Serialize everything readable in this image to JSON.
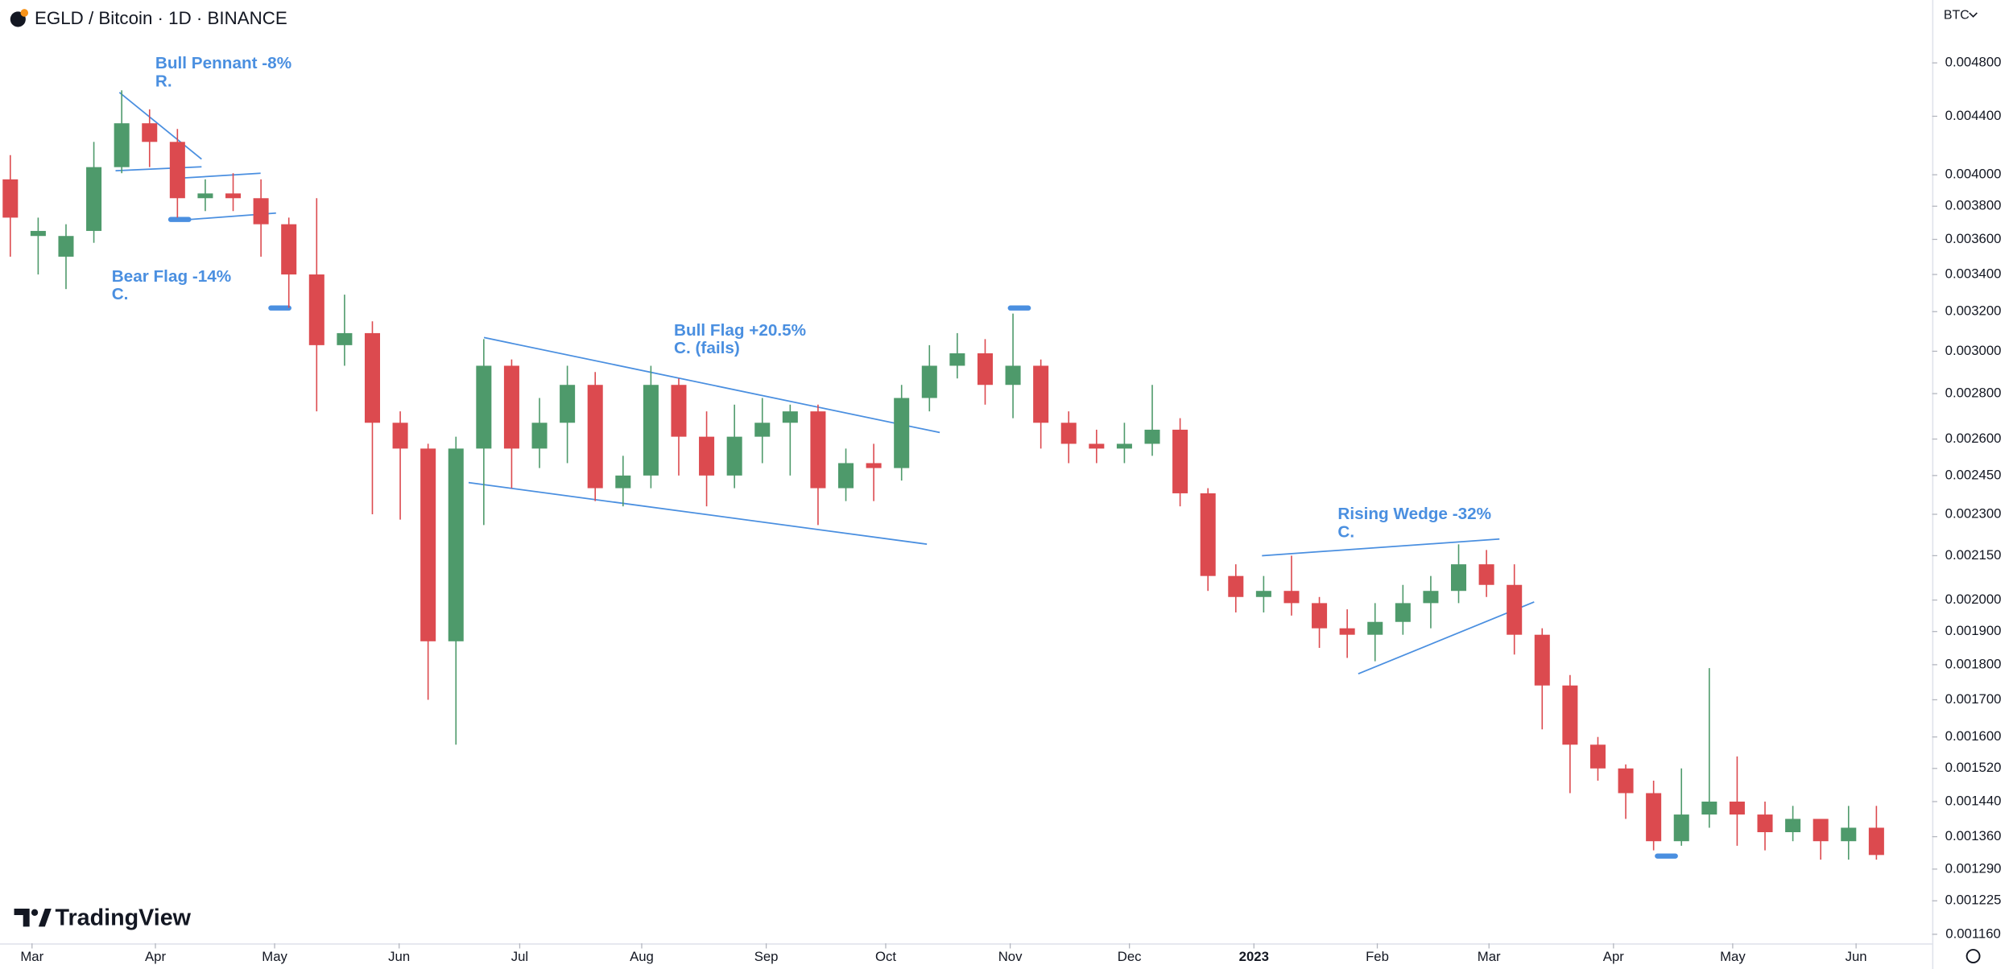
{
  "header": {
    "title": "EGLD / Bitcoin · 1D · BINANCE",
    "currency": "BTC",
    "brand": "TradingView"
  },
  "chart_data": {
    "type": "candlestick",
    "log_scale": true,
    "grid": false,
    "up_color": "#4e9a6b",
    "down_color": "#dc4a4f",
    "annotation_color": "#4a8fe0",
    "ylim": [
      0.001143,
      0.005318
    ],
    "yticks": [
      {
        "value": 0.0048,
        "label": "0.004800"
      },
      {
        "value": 0.0044,
        "label": "0.004400"
      },
      {
        "value": 0.004,
        "label": "0.004000"
      },
      {
        "value": 0.0038,
        "label": "0.003800"
      },
      {
        "value": 0.0036,
        "label": "0.003600"
      },
      {
        "value": 0.0034,
        "label": "0.003400"
      },
      {
        "value": 0.0032,
        "label": "0.003200"
      },
      {
        "value": 0.003,
        "label": "0.003000"
      },
      {
        "value": 0.0028,
        "label": "0.002800"
      },
      {
        "value": 0.0026,
        "label": "0.002600"
      },
      {
        "value": 0.00245,
        "label": "0.002450"
      },
      {
        "value": 0.0023,
        "label": "0.002300"
      },
      {
        "value": 0.00215,
        "label": "0.002150"
      },
      {
        "value": 0.002,
        "label": "0.002000"
      },
      {
        "value": 0.0019,
        "label": "0.001900"
      },
      {
        "value": 0.0018,
        "label": "0.001800"
      },
      {
        "value": 0.0017,
        "label": "0.001700"
      },
      {
        "value": 0.0016,
        "label": "0.001600"
      },
      {
        "value": 0.00152,
        "label": "0.001520"
      },
      {
        "value": 0.00144,
        "label": "0.001440"
      },
      {
        "value": 0.00136,
        "label": "0.001360"
      },
      {
        "value": 0.00129,
        "label": "0.001290"
      },
      {
        "value": 0.001225,
        "label": "0.001225"
      },
      {
        "value": 0.00116,
        "label": "0.001160"
      }
    ],
    "xlim": [
      -0.37,
      69
    ],
    "xticks": [
      {
        "value": 0.78,
        "label": "Mar"
      },
      {
        "value": 5.21,
        "label": "Apr"
      },
      {
        "value": 9.49,
        "label": "May"
      },
      {
        "value": 13.96,
        "label": "Jun"
      },
      {
        "value": 18.29,
        "label": "Jul"
      },
      {
        "value": 22.67,
        "label": "Aug"
      },
      {
        "value": 27.14,
        "label": "Sep"
      },
      {
        "value": 31.43,
        "label": "Oct"
      },
      {
        "value": 35.9,
        "label": "Nov"
      },
      {
        "value": 40.18,
        "label": "Dec"
      },
      {
        "value": 44.65,
        "label": "2023"
      },
      {
        "value": 49.08,
        "label": "Feb"
      },
      {
        "value": 53.09,
        "label": "Mar"
      },
      {
        "value": 57.56,
        "label": "Apr"
      },
      {
        "value": 61.84,
        "label": "May"
      },
      {
        "value": 66.27,
        "label": "Jun"
      }
    ],
    "candles": [
      [
        0.00397,
        0.00413,
        0.0035,
        0.00373
      ],
      [
        0.00362,
        0.00373,
        0.0034,
        0.00365
      ],
      [
        0.0035,
        0.00369,
        0.00332,
        0.00362
      ],
      [
        0.00365,
        0.00422,
        0.00358,
        0.00405
      ],
      [
        0.00405,
        0.00459,
        0.00401,
        0.00435
      ],
      [
        0.00435,
        0.00445,
        0.00405,
        0.00422
      ],
      [
        0.00422,
        0.00431,
        0.00373,
        0.00385
      ],
      [
        0.00385,
        0.00397,
        0.00377,
        0.00388
      ],
      [
        0.00388,
        0.00401,
        0.00377,
        0.00385
      ],
      [
        0.00385,
        0.00397,
        0.0035,
        0.00369
      ],
      [
        0.00369,
        0.00373,
        0.00322,
        0.0034
      ],
      [
        0.0034,
        0.00385,
        0.00272,
        0.00303
      ],
      [
        0.00303,
        0.00329,
        0.00293,
        0.00309
      ],
      [
        0.00309,
        0.00315,
        0.0023,
        0.00267
      ],
      [
        0.00267,
        0.00272,
        0.00228,
        0.00256
      ],
      [
        0.00256,
        0.00258,
        0.0017,
        0.00187
      ],
      [
        0.00187,
        0.00261,
        0.00158,
        0.00256
      ],
      [
        0.00256,
        0.00306,
        0.00226,
        0.00293
      ],
      [
        0.00293,
        0.00296,
        0.0024,
        0.00256
      ],
      [
        0.00256,
        0.00278,
        0.00248,
        0.00267
      ],
      [
        0.00267,
        0.00293,
        0.0025,
        0.00284
      ],
      [
        0.00284,
        0.0029,
        0.00235,
        0.0024
      ],
      [
        0.0024,
        0.00253,
        0.00233,
        0.00245
      ],
      [
        0.00245,
        0.00293,
        0.0024,
        0.00284
      ],
      [
        0.00284,
        0.00287,
        0.00245,
        0.00261
      ],
      [
        0.00261,
        0.00272,
        0.00233,
        0.00245
      ],
      [
        0.00245,
        0.00275,
        0.0024,
        0.00261
      ],
      [
        0.00261,
        0.00278,
        0.0025,
        0.00267
      ],
      [
        0.00267,
        0.00275,
        0.00245,
        0.00272
      ],
      [
        0.00272,
        0.00275,
        0.00226,
        0.0024
      ],
      [
        0.0024,
        0.00256,
        0.00235,
        0.0025
      ],
      [
        0.0025,
        0.00258,
        0.00235,
        0.00248
      ],
      [
        0.00248,
        0.00284,
        0.00243,
        0.00278
      ],
      [
        0.00278,
        0.00303,
        0.00272,
        0.00293
      ],
      [
        0.00293,
        0.00309,
        0.00287,
        0.00299
      ],
      [
        0.00299,
        0.00306,
        0.00275,
        0.00284
      ],
      [
        0.00284,
        0.00319,
        0.00269,
        0.00293
      ],
      [
        0.00293,
        0.00296,
        0.00256,
        0.00267
      ],
      [
        0.00267,
        0.00272,
        0.0025,
        0.00258
      ],
      [
        0.00258,
        0.00264,
        0.0025,
        0.00256
      ],
      [
        0.00256,
        0.00267,
        0.0025,
        0.00258
      ],
      [
        0.00258,
        0.00284,
        0.00253,
        0.00264
      ],
      [
        0.00264,
        0.00269,
        0.00233,
        0.00238
      ],
      [
        0.00238,
        0.0024,
        0.00203,
        0.00208
      ],
      [
        0.00208,
        0.00212,
        0.00196,
        0.00201
      ],
      [
        0.00201,
        0.00208,
        0.00196,
        0.00203
      ],
      [
        0.00203,
        0.00215,
        0.00195,
        0.00199
      ],
      [
        0.00199,
        0.00201,
        0.00185,
        0.00191
      ],
      [
        0.00191,
        0.00197,
        0.00182,
        0.00189
      ],
      [
        0.00189,
        0.00199,
        0.00181,
        0.00193
      ],
      [
        0.00193,
        0.00205,
        0.00189,
        0.00199
      ],
      [
        0.00199,
        0.00208,
        0.00191,
        0.00203
      ],
      [
        0.00203,
        0.00219,
        0.00199,
        0.00212
      ],
      [
        0.00212,
        0.00217,
        0.00201,
        0.00205
      ],
      [
        0.00205,
        0.00212,
        0.00183,
        0.00189
      ],
      [
        0.00189,
        0.00191,
        0.00162,
        0.00174
      ],
      [
        0.00174,
        0.00177,
        0.00146,
        0.00158
      ],
      [
        0.00158,
        0.0016,
        0.00149,
        0.00152
      ],
      [
        0.00152,
        0.00153,
        0.0014,
        0.00146
      ],
      [
        0.00146,
        0.00149,
        0.00133,
        0.00135
      ],
      [
        0.00135,
        0.00152,
        0.00134,
        0.00141
      ],
      [
        0.00141,
        0.00179,
        0.00138,
        0.00144
      ],
      [
        0.00144,
        0.00155,
        0.00134,
        0.00141
      ],
      [
        0.00141,
        0.00144,
        0.00133,
        0.00137
      ],
      [
        0.00137,
        0.00143,
        0.00135,
        0.0014
      ],
      [
        0.0014,
        0.0014,
        0.00131,
        0.00135
      ],
      [
        0.00135,
        0.00143,
        0.00131,
        0.00138
      ],
      [
        0.00138,
        0.00143,
        0.00131,
        0.00132
      ]
    ],
    "annotations": [
      {
        "lines": [
          "Bull Pennant -8%",
          "R."
        ]
      },
      {
        "lines": [
          "Bear Flag -14%",
          "C."
        ]
      },
      {
        "lines": [
          "Bull Flag +20.5%",
          "C. (fails)"
        ]
      },
      {
        "lines": [
          "Rising Wedge -32%",
          "C."
        ]
      }
    ]
  }
}
